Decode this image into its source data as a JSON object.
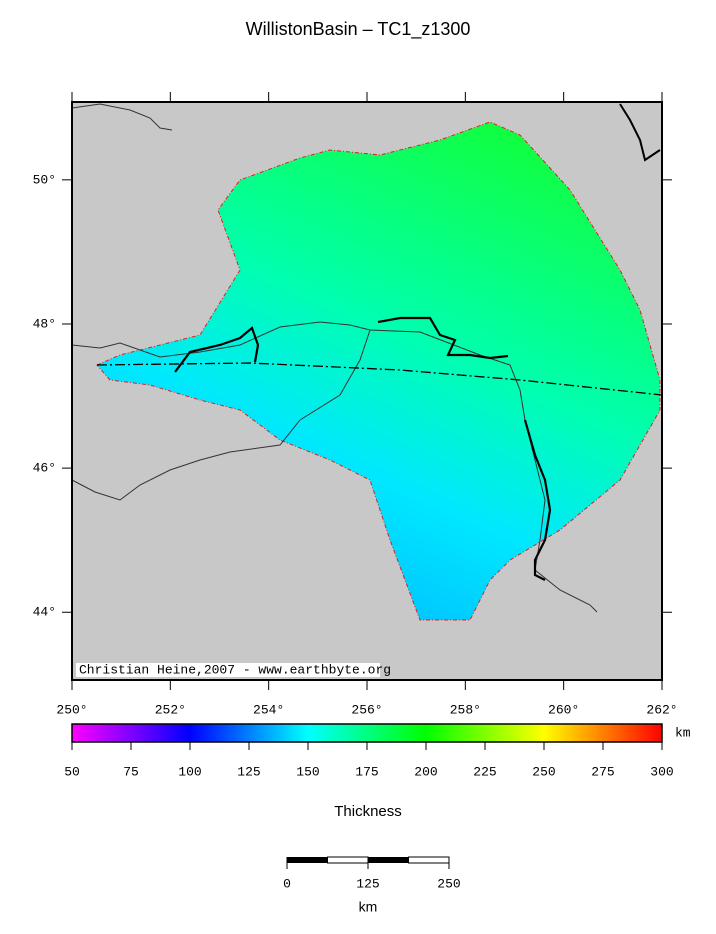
{
  "title": "WillistonBasin – TC1_z1300",
  "credit": "Christian Heine,2007 - www.earthbyte.org",
  "map": {
    "lon_range": [
      250,
      262
    ],
    "lat_range": [
      43.06,
      51.08
    ],
    "lon_ticks": [
      {
        "value": 250,
        "label": "250°"
      },
      {
        "value": 252,
        "label": "252°"
      },
      {
        "value": 254,
        "label": "254°"
      },
      {
        "value": 256,
        "label": "256°"
      },
      {
        "value": 258,
        "label": "258°"
      },
      {
        "value": 260,
        "label": "260°"
      },
      {
        "value": 262,
        "label": "262°"
      }
    ],
    "lat_ticks": [
      {
        "value": 44,
        "label": "44°"
      },
      {
        "value": 46,
        "label": "46°"
      },
      {
        "value": 48,
        "label": "48°"
      },
      {
        "value": 50,
        "label": "50°"
      }
    ]
  },
  "colorbar": {
    "title": "Thickness",
    "unit": "km",
    "range": [
      50,
      300
    ],
    "ticks": [
      50,
      75,
      100,
      125,
      150,
      175,
      200,
      225,
      250,
      275,
      300
    ]
  },
  "scale_bar": {
    "unit": "km",
    "ticks": [
      0,
      125,
      250
    ]
  }
}
